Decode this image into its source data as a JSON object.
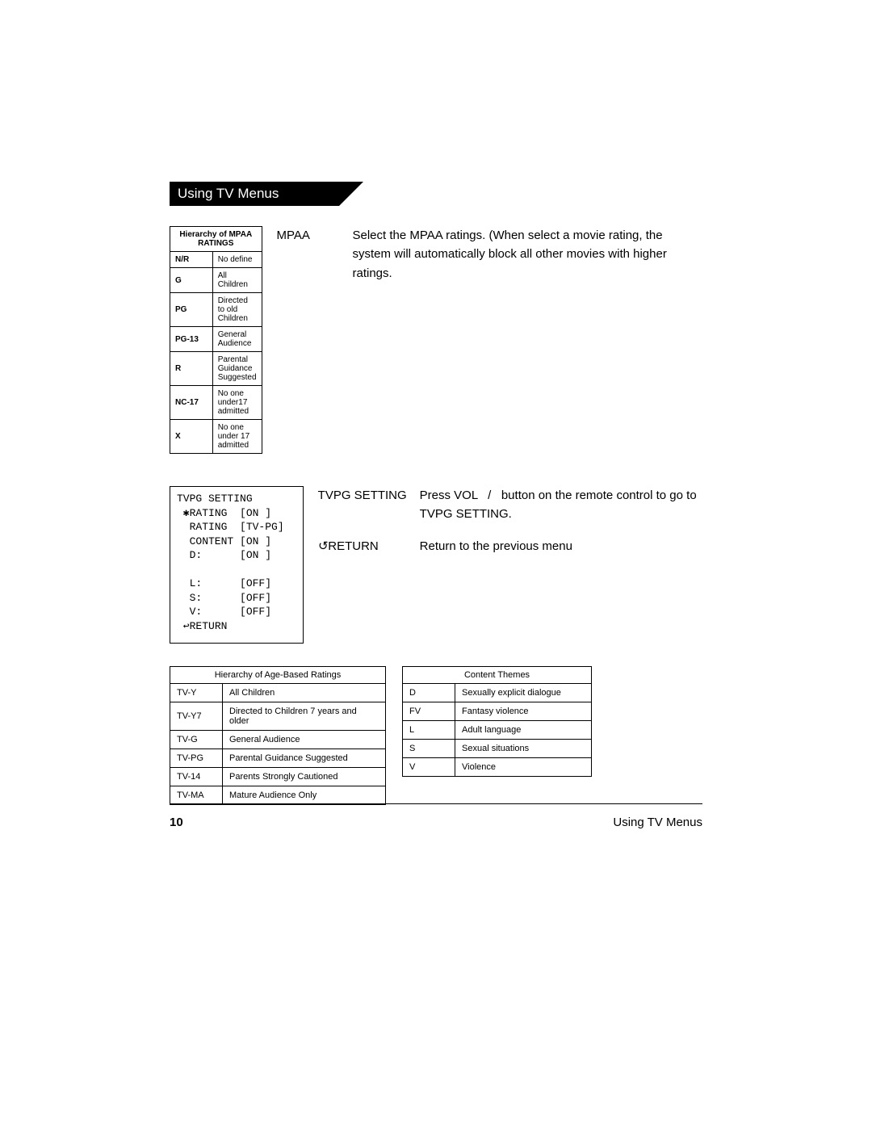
{
  "header": {
    "title": "Using TV Menus"
  },
  "mpaa": {
    "label": "MPAA",
    "description": "Select the MPAA ratings. (When select a movie rating, the system will automatically block all other movies with higher ratings.",
    "table_title": "Hierarchy of MPAA RATINGS",
    "rows": [
      {
        "code": "N/R",
        "desc": "No  define"
      },
      {
        "code": "G",
        "desc": "All Children"
      },
      {
        "code": "PG",
        "desc": "Directed to old Children"
      },
      {
        "code": "PG-13",
        "desc": "General Audience"
      },
      {
        "code": "R",
        "desc": "Parental Guidance Suggested"
      },
      {
        "code": "NC-17",
        "desc": "No one under17 admitted"
      },
      {
        "code": "X",
        "desc": "No one under 17 admitted"
      }
    ]
  },
  "tvpg_box": {
    "title": "TVPG SETTING",
    "lines": [
      {
        "marker": "✱",
        "label": "RATING",
        "value": "[ON ]"
      },
      {
        "marker": " ",
        "label": "RATING",
        "value": "[TV-PG]"
      },
      {
        "marker": " ",
        "label": "CONTENT",
        "value": "[ON ]"
      },
      {
        "marker": " ",
        "label": "D:",
        "value": "[ON ]"
      },
      {
        "marker": "",
        "label": "",
        "value": ""
      },
      {
        "marker": " ",
        "label": "L:",
        "value": "[OFF]"
      },
      {
        "marker": " ",
        "label": "S:",
        "value": "[OFF]"
      },
      {
        "marker": " ",
        "label": "V:",
        "value": "[OFF]"
      },
      {
        "marker": "↩",
        "label": "RETURN",
        "value": ""
      }
    ]
  },
  "tvpg_desc": {
    "label": "TVPG SETTING",
    "text_before": "Press VOL",
    "text_slash": "/",
    "text_after": "button on the remote control to go to TVPG SETTING."
  },
  "return_desc": {
    "label": "RETURN",
    "text": "Return to the previous menu"
  },
  "age_table": {
    "title": "Hierarchy of Age-Based Ratings",
    "rows": [
      {
        "code": "TV-Y",
        "desc": "All Children"
      },
      {
        "code": "TV-Y7",
        "desc": "Directed to Children 7 years and older"
      },
      {
        "code": "TV-G",
        "desc": "General Audience"
      },
      {
        "code": "TV-PG",
        "desc": "Parental Guidance Suggested"
      },
      {
        "code": "TV-14",
        "desc": "Parents Strongly Cautioned"
      },
      {
        "code": "TV-MA",
        "desc": "Mature Audience Only"
      }
    ]
  },
  "themes_table": {
    "title": "Content Themes",
    "rows": [
      {
        "code": "D",
        "desc": "Sexually explicit dialogue"
      },
      {
        "code": "FV",
        "desc": "Fantasy violence"
      },
      {
        "code": "L",
        "desc": "Adult language"
      },
      {
        "code": "S",
        "desc": "Sexual situations"
      },
      {
        "code": "V",
        "desc": "Violence"
      }
    ]
  },
  "footer": {
    "page_number": "10",
    "section": "Using TV Menus"
  }
}
